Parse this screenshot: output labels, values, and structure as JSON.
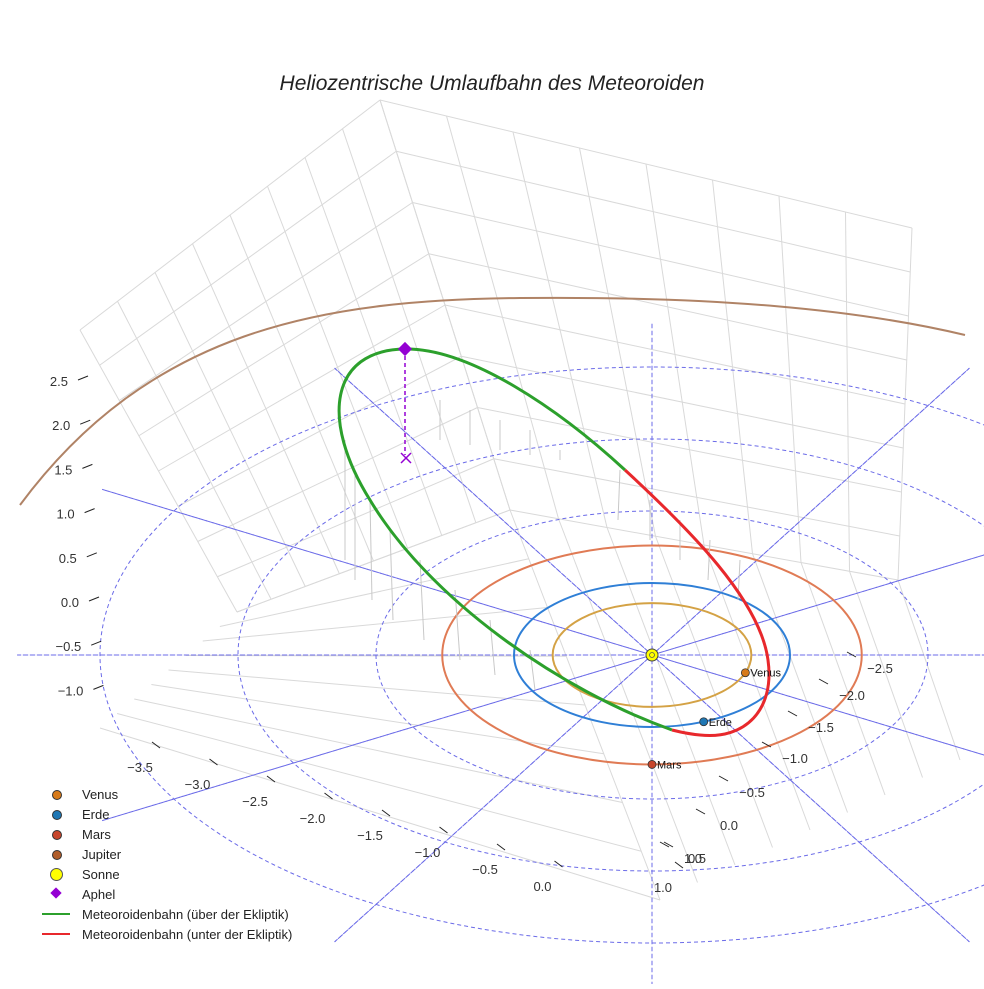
{
  "chart_data": {
    "type": "line",
    "title": "Heliozentrische Umlaufbahn des Meteoroiden",
    "projection": "3d",
    "x_ticks": [
      "−3.5",
      "−3.0",
      "−2.5",
      "−2.0",
      "−1.5",
      "−1.0",
      "−0.5",
      "0.0",
      "1.0"
    ],
    "y_ticks": [
      "1.0",
      "0.5",
      "0.0",
      "−0.5",
      "−1.0",
      "−1.5",
      "−2.0",
      "−2.5"
    ],
    "z_ticks": [
      "2.5",
      "2.0",
      "1.5",
      "1.0",
      "0.5",
      "0.0",
      "−0.5",
      "−1.0"
    ],
    "xlim": [
      -3.7,
      1.3
    ],
    "ylim": [
      -2.8,
      1.2
    ],
    "zlim": [
      -1.3,
      2.9
    ],
    "grid": true,
    "ecliptic_polar_grid": {
      "radii_au": [
        1,
        2,
        3,
        4
      ],
      "spokes": 12,
      "style": "dashed blue"
    },
    "planets": [
      {
        "name": "Venus",
        "label": "Venus",
        "orbit_radius_au": 0.72,
        "color": "#d4a245",
        "marker_color": "#d77a1a",
        "angle_deg": -20
      },
      {
        "name": "Erde",
        "label": "Erde",
        "orbit_radius_au": 1.0,
        "color": "#2f7fd6",
        "marker_color": "#1f77b4",
        "angle_deg": -68
      },
      {
        "name": "Mars",
        "label": "Mars",
        "orbit_radius_au": 1.52,
        "color": "#e07b55",
        "marker_color": "#c7462c",
        "angle_deg": -90
      },
      {
        "name": "Jupiter",
        "orbit_radius_au": 5.2,
        "color": "#b08366",
        "marker_color": "#b05d2a"
      }
    ],
    "sun": {
      "name": "Sonne",
      "color": "#ffff00"
    },
    "aphel": {
      "name": "Aphel",
      "color": "#9400d3",
      "z_au": 2.9
    },
    "meteoroid_orbit": {
      "above": {
        "name": "Meteoroidenbahn (über der Ekliptik)",
        "color": "#2ca02c"
      },
      "below": {
        "name": "Meteoroidenbahn (unter der Ekliptik)",
        "color": "#e8282c"
      }
    },
    "legend_position": "bottom-left",
    "legend": [
      {
        "label": "Venus",
        "kind": "dot",
        "color": "#d77a1a"
      },
      {
        "label": "Erde",
        "kind": "dot",
        "color": "#1f77b4"
      },
      {
        "label": "Mars",
        "kind": "dot",
        "color": "#c7462c"
      },
      {
        "label": "Jupiter",
        "kind": "dot",
        "color": "#b05d2a"
      },
      {
        "label": "Sonne",
        "kind": "sun",
        "color": "#ffff00"
      },
      {
        "label": "Aphel",
        "kind": "diamond",
        "color": "#9400d3"
      },
      {
        "label": "Meteoroidenbahn (über der Ekliptik)",
        "kind": "line",
        "color": "#2ca02c"
      },
      {
        "label": "Meteoroidenbahn (unter der Ekliptik)",
        "kind": "line",
        "color": "#e8282c"
      }
    ]
  }
}
